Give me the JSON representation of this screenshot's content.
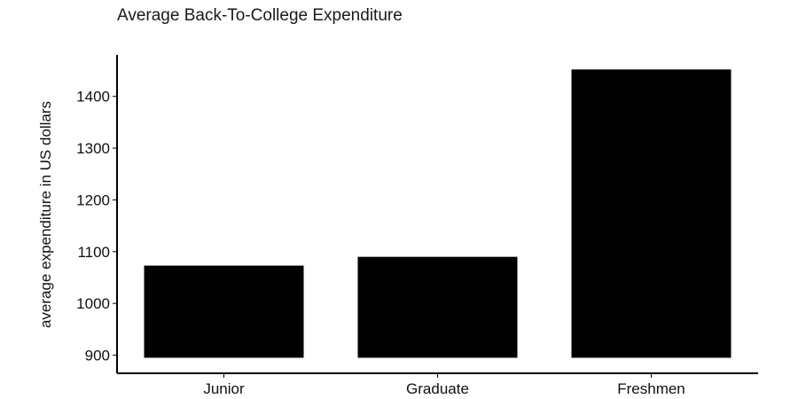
{
  "chart_data": {
    "type": "bar",
    "title": "Average Back-To-College Expenditure",
    "xlabel": "",
    "ylabel": "average expenditure in US dollars",
    "categories": [
      "Junior",
      "Graduate",
      "Freshmen"
    ],
    "values": [
      1073,
      1090,
      1452
    ],
    "baseline": 895,
    "ylim": [
      865,
      1480
    ],
    "yticks": [
      900,
      1000,
      1100,
      1200,
      1300,
      1400
    ],
    "grid": false,
    "legend": "none",
    "colors": {
      "bar": "#000000",
      "axis": "#000000",
      "text": "#111111"
    }
  }
}
